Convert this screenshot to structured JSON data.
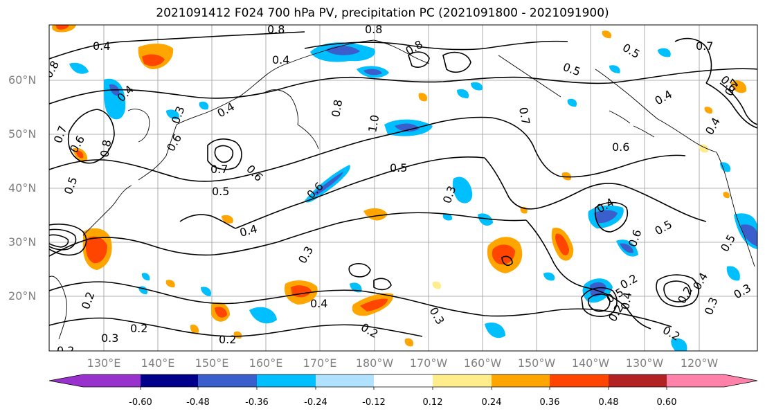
{
  "title": "2021091412 F024 700 hPa PV, precipitation PC (2021091800 - 2021091900)",
  "map": {
    "projection": "PlateCarree",
    "lon_range": [
      "120°E",
      "110°W"
    ],
    "lat_range": [
      "10°N",
      "70°N"
    ],
    "lat_ticks": [
      "60°N",
      "50°N",
      "40°N",
      "30°N",
      "20°N"
    ],
    "lon_ticks": [
      "130°E",
      "140°E",
      "150°E",
      "160°E",
      "170°E",
      "180°W",
      "170°W",
      "160°W",
      "150°W",
      "140°W",
      "130°W",
      "120°W"
    ],
    "gridlines": true,
    "coastlines": true,
    "contour_color": "#000000",
    "contour_labels": [
      "0.4",
      "0.8",
      "0.8",
      "0.8",
      "0.7",
      "0.4",
      "0.8",
      "0.4",
      "0.8",
      "0.5",
      "0.5",
      "0.7",
      "0.6",
      "0.3",
      "0.4",
      "0.4",
      "0.7",
      "0.6",
      "0.8",
      "0.6",
      "1.0",
      "0.7",
      "0.5",
      "0.4",
      "0.6",
      "0.7",
      "0.6",
      "0.5",
      "0.5",
      "0.3",
      "0.6",
      "0.4",
      "0.4",
      "0.5",
      "0.6",
      "0.5",
      "0.3",
      "0.2",
      "0.4",
      "0.3",
      "0.2",
      "0.2",
      "0.2",
      "0.2",
      "0.3",
      "0.3",
      "0.4",
      "0.2",
      "0.5",
      "0.2",
      "0.3",
      "0.2",
      "0.2",
      "0.4"
    ]
  },
  "colorbar": {
    "extend": "both",
    "levels": [
      "-0.60",
      "-0.48",
      "-0.36",
      "-0.24",
      "-0.12",
      "0.12",
      "0.24",
      "0.36",
      "0.48",
      "0.60"
    ],
    "colors": [
      "#9932cc",
      "#00008b",
      "#3a5fcd",
      "#00bfff",
      "#b0e2ff",
      "#ffffff",
      "#ffec8b",
      "#ffa500",
      "#ff4500",
      "#b22222",
      "#ff82ab"
    ]
  }
}
